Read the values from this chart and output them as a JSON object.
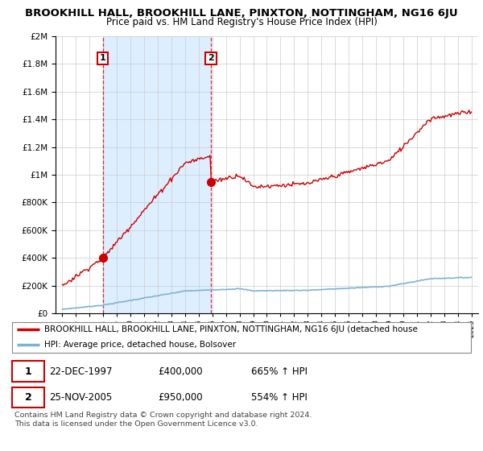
{
  "title": "BROOKHILL HALL, BROOKHILL LANE, PINXTON, NOTTINGHAM, NG16 6JU",
  "subtitle": "Price paid vs. HM Land Registry's House Price Index (HPI)",
  "title_fontsize": 9.5,
  "subtitle_fontsize": 8.5,
  "sale1_date": "22-DEC-1997",
  "sale1_price": 400000,
  "sale1_label": "1",
  "sale1_year": 1997.97,
  "sale2_date": "25-NOV-2005",
  "sale2_price": 950000,
  "sale2_label": "2",
  "sale2_year": 2005.9,
  "legend_line1": "BROOKHILL HALL, BROOKHILL LANE, PINXTON, NOTTINGHAM, NG16 6JU (detached house",
  "legend_line2": "HPI: Average price, detached house, Bolsover",
  "footnote1": "Contains HM Land Registry data © Crown copyright and database right 2024.",
  "footnote2": "This data is licensed under the Open Government Licence v3.0.",
  "table_row1": [
    "1",
    "22-DEC-1997",
    "£400,000",
    "665% ↑ HPI"
  ],
  "table_row2": [
    "2",
    "25-NOV-2005",
    "£950,000",
    "554% ↑ HPI"
  ],
  "hpi_color": "#7fb3d3",
  "price_color": "#cc0000",
  "dashed_color": "#cc0000",
  "shade_color": "#ddeeff",
  "background_color": "#ffffff",
  "ylim": [
    0,
    2000000
  ],
  "xlim_start": 1994.5,
  "xlim_end": 2025.5
}
